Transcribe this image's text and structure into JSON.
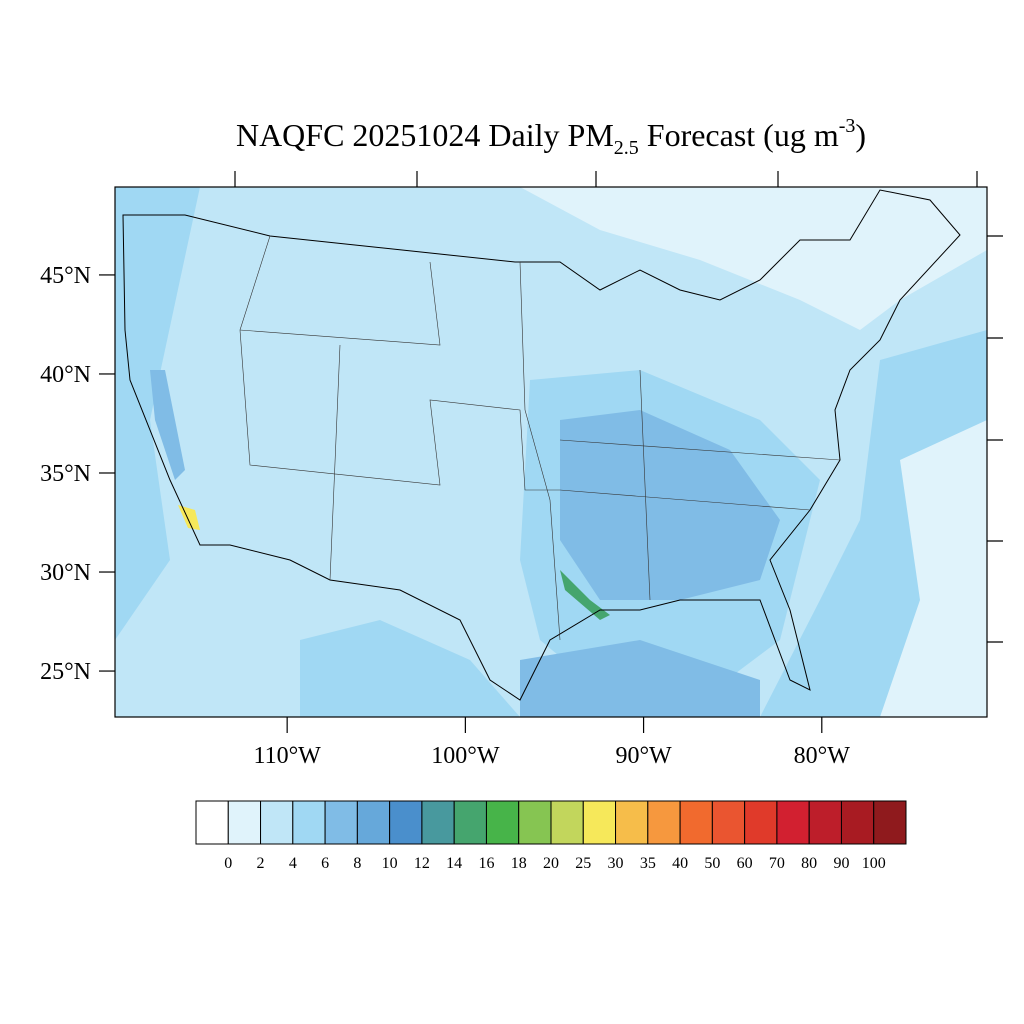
{
  "title": {
    "main": "NAQFC 20251024 Daily PM",
    "sub": "2.5",
    "middle": " Forecast (ug m",
    "sup": "-3",
    "end": ")"
  },
  "map": {
    "xlim": [
      -119.66,
      -70.73
    ],
    "ylim": [
      22.68,
      49.44
    ],
    "yticks": [
      {
        "value": 45,
        "label": "45°N"
      },
      {
        "value": 40,
        "label": "40°N"
      },
      {
        "value": 35,
        "label": "35°N"
      },
      {
        "value": 30,
        "label": "30°N"
      },
      {
        "value": 25,
        "label": "25°N"
      }
    ],
    "xticks": [
      {
        "value": -110,
        "label": "110°W"
      },
      {
        "value": -100,
        "label": "100°W"
      },
      {
        "value": -90,
        "label": "90°W"
      },
      {
        "value": -80,
        "label": "80°W"
      }
    ]
  },
  "colorbar": {
    "levels": [
      0,
      2,
      4,
      6,
      8,
      10,
      12,
      14,
      16,
      18,
      20,
      25,
      30,
      35,
      40,
      50,
      60,
      70,
      80,
      90,
      100
    ],
    "colors": [
      "#ffffff",
      "#e0f3fb",
      "#c0e6f7",
      "#a0d8f3",
      "#80bce6",
      "#66a8da",
      "#4a8fcc",
      "#48999e",
      "#45a56e",
      "#47b449",
      "#86c552",
      "#c2d65c",
      "#f6e85a",
      "#f6bd4a",
      "#f6983e",
      "#f16a2e",
      "#ea5530",
      "#e03a2a",
      "#d22030",
      "#bd1e2a",
      "#a81b22",
      "#8f1a1d"
    ]
  }
}
